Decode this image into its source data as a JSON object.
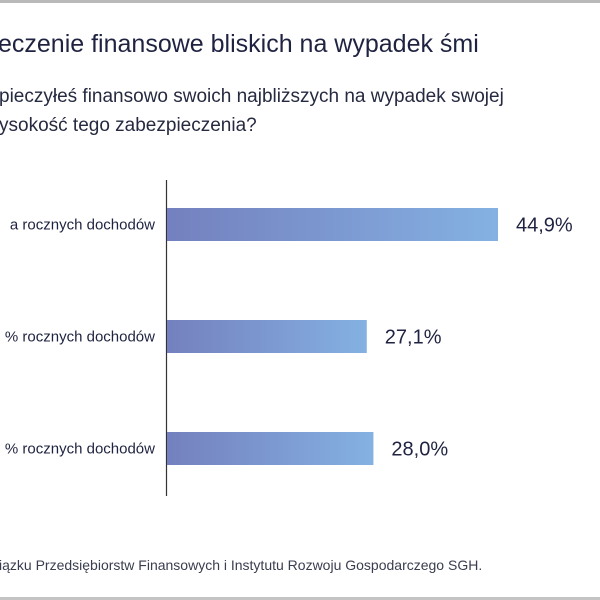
{
  "title": "eczenie finansowe bliskich na wypadek śmi",
  "subtitle_lines": [
    "pieczyłeś finansowo swoich najbliższych na wypadek swojej",
    "ysokość tego zabezpieczenia?"
  ],
  "footer": "iązku Przedsiębiorstw Finansowych i Instytutu Rozwoju Gospodarczego SGH.",
  "colors": {
    "bar_start": "#7480bf",
    "bar_end": "#84b1e2",
    "text": "#1f2341",
    "axis": "#333333"
  },
  "chart_data": {
    "type": "bar",
    "orientation": "horizontal",
    "categories": [
      "a rocznych dochodów",
      "% rocznych dochodów",
      "% rocznych dochodów"
    ],
    "values": [
      44.9,
      27.1,
      28.0
    ],
    "value_labels": [
      "44,9%",
      "27,1%",
      "28,0%"
    ],
    "unit": "%",
    "xlim": [
      0,
      50
    ],
    "grid": false
  }
}
